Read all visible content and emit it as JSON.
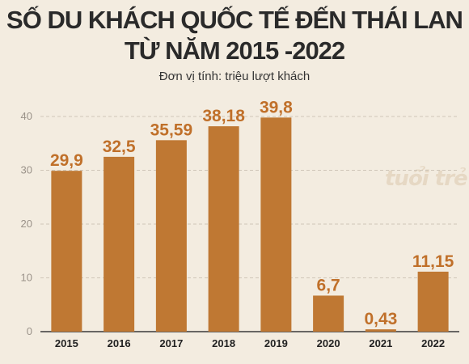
{
  "chart_data": {
    "type": "bar",
    "title_line1": "SỐ DU KHÁCH QUỐC TẾ ĐẾN THÁI LAN",
    "title_line2": "TỪ NĂM 2015 -2022",
    "subtitle": "Đơn vị tính: triệu lượt khách",
    "categories": [
      "2015",
      "2016",
      "2017",
      "2018",
      "2019",
      "2020",
      "2021",
      "2022"
    ],
    "values": [
      29.9,
      32.5,
      35.59,
      38.18,
      39.8,
      6.7,
      0.43,
      11.15
    ],
    "value_labels": [
      "29,9",
      "32,5",
      "35,59",
      "38,18",
      "39,8",
      "6,7",
      "0,43",
      "11,15"
    ],
    "yticks": [
      "0",
      "10",
      "20",
      "30",
      "40"
    ],
    "ylim": [
      0,
      40
    ],
    "grid": true,
    "bar_color": "#bf7833",
    "label_color": "#c0702a",
    "background_color": "#f3ece0"
  },
  "watermark": "tuổi trẻ"
}
